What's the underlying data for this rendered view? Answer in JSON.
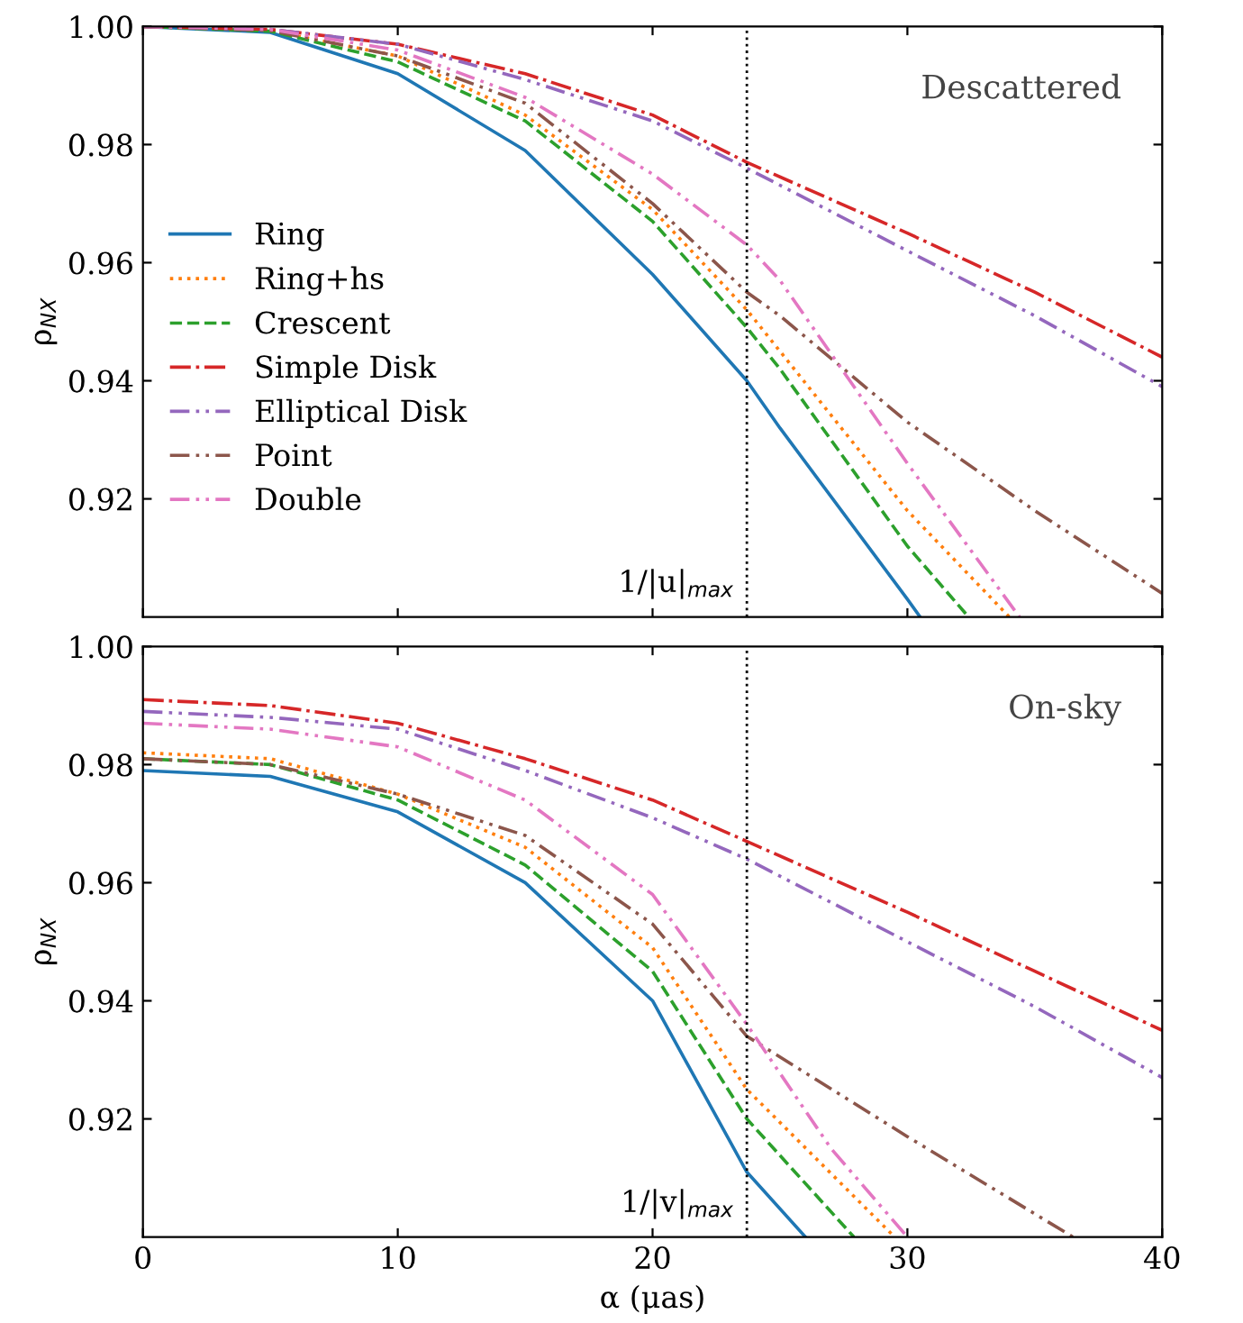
{
  "chart_data": [
    {
      "type": "line",
      "ylabel": "ρ$_{NX}$",
      "xlim": [
        0,
        40
      ],
      "ylim": [
        0.9,
        1.0
      ],
      "xticks": [
        0,
        10,
        20,
        30,
        40
      ],
      "yticks": [
        {
          "value": 0.92,
          "label": "0.92"
        },
        {
          "value": 0.94,
          "label": "0.94"
        },
        {
          "value": 0.96,
          "label": "0.96"
        },
        {
          "value": 0.98,
          "label": "0.98"
        },
        {
          "value": 1.0,
          "label": "1.00"
        }
      ],
      "tick_labels": "y",
      "grid": false,
      "legend": "left",
      "annotations": [
        "Descattered"
      ],
      "ref_lines": [
        {
          "axis": "x",
          "value": 23.7,
          "label": "1/|u|$_{max}$",
          "line_style": "dotted",
          "color": "#000000"
        }
      ],
      "series": [
        {
          "name": "Ring",
          "color": "#1f77b4",
          "line_style": "solid",
          "x": [
            0,
            5,
            10,
            15,
            20,
            23.7,
            25,
            30,
            30.5
          ],
          "values": [
            1.0,
            0.999,
            0.992,
            0.979,
            0.958,
            0.94,
            0.932,
            0.903,
            0.9
          ]
        },
        {
          "name": "Ring+hs",
          "color": "#ff7f0e",
          "line_style": "dotted",
          "x": [
            0,
            5,
            10,
            15,
            20,
            23.7,
            25,
            30,
            34
          ],
          "values": [
            1.0,
            0.9993,
            0.995,
            0.985,
            0.969,
            0.952,
            0.945,
            0.918,
            0.9
          ]
        },
        {
          "name": "Crescent",
          "color": "#2ca02c",
          "line_style": "dashed",
          "x": [
            0,
            5,
            10,
            15,
            20,
            23.7,
            25,
            30,
            32.4
          ],
          "values": [
            1.0,
            0.9992,
            0.994,
            0.984,
            0.967,
            0.949,
            0.942,
            0.912,
            0.9
          ]
        },
        {
          "name": "Simple Disk",
          "color": "#d62728",
          "line_style": "dashdot",
          "x": [
            0,
            5,
            10,
            15,
            20,
            23.7,
            30,
            35,
            40
          ],
          "values": [
            1.0,
            0.9995,
            0.997,
            0.992,
            0.985,
            0.977,
            0.965,
            0.955,
            0.944
          ]
        },
        {
          "name": "Elliptical Disk",
          "color": "#9467bd",
          "line_style": "dashdotdot",
          "x": [
            0,
            5,
            10,
            15,
            20,
            23.7,
            30,
            35,
            40
          ],
          "values": [
            1.0,
            0.9995,
            0.997,
            0.991,
            0.984,
            0.976,
            0.962,
            0.951,
            0.939
          ]
        },
        {
          "name": "Point",
          "color": "#8c564b",
          "line_style": "dashdotdot",
          "x": [
            0,
            5,
            10,
            15,
            20,
            23.7,
            25,
            30,
            35,
            40
          ],
          "values": [
            1.0,
            0.9993,
            0.995,
            0.987,
            0.97,
            0.955,
            0.951,
            0.933,
            0.918,
            0.904
          ]
        },
        {
          "name": "Double",
          "color": "#e377c2",
          "line_style": "dashdotdot",
          "x": [
            0,
            5,
            10,
            15,
            20,
            23.7,
            25,
            30,
            34.4
          ],
          "values": [
            1.0,
            0.9995,
            0.996,
            0.988,
            0.975,
            0.963,
            0.957,
            0.926,
            0.9
          ]
        }
      ]
    },
    {
      "type": "line",
      "xlabel": "α (μas)",
      "ylabel": "ρ$_{NX}$",
      "xlim": [
        0,
        40
      ],
      "ylim": [
        0.9,
        1.0
      ],
      "xticks": [
        0,
        10,
        20,
        30,
        40
      ],
      "yticks": [
        {
          "value": 0.92,
          "label": "0.92"
        },
        {
          "value": 0.94,
          "label": "0.94"
        },
        {
          "value": 0.96,
          "label": "0.96"
        },
        {
          "value": 0.98,
          "label": "0.98"
        },
        {
          "value": 1.0,
          "label": "1.00"
        }
      ],
      "grid": false,
      "annotations": [
        "On-sky"
      ],
      "ref_lines": [
        {
          "axis": "x",
          "value": 23.7,
          "label": "1/|v|$_{max}$",
          "line_style": "dotted",
          "color": "#000000"
        }
      ],
      "series": [
        {
          "color": "#1f77b4",
          "line_style": "solid",
          "x": [
            0,
            5,
            10,
            15,
            20,
            23.7,
            26
          ],
          "values": [
            0.979,
            0.978,
            0.972,
            0.96,
            0.94,
            0.911,
            0.9
          ]
        },
        {
          "color": "#ff7f0e",
          "line_style": "dotted",
          "x": [
            0,
            5,
            10,
            15,
            20,
            23.7,
            29.5
          ],
          "values": [
            0.982,
            0.981,
            0.975,
            0.966,
            0.949,
            0.925,
            0.9
          ]
        },
        {
          "color": "#2ca02c",
          "line_style": "dashed",
          "x": [
            0,
            5,
            10,
            15,
            20,
            23.7,
            27.9
          ],
          "values": [
            0.981,
            0.98,
            0.974,
            0.963,
            0.945,
            0.92,
            0.9
          ]
        },
        {
          "color": "#d62728",
          "line_style": "dashdot",
          "x": [
            0,
            5,
            10,
            15,
            20,
            23.7,
            30,
            35,
            40
          ],
          "values": [
            0.991,
            0.99,
            0.987,
            0.981,
            0.974,
            0.967,
            0.955,
            0.945,
            0.935
          ]
        },
        {
          "color": "#9467bd",
          "line_style": "dashdotdot",
          "x": [
            0,
            5,
            10,
            15,
            20,
            23.7,
            30,
            35,
            40
          ],
          "values": [
            0.989,
            0.988,
            0.986,
            0.979,
            0.971,
            0.964,
            0.95,
            0.939,
            0.927
          ]
        },
        {
          "color": "#8c564b",
          "line_style": "dashdotdot",
          "x": [
            0,
            5,
            10,
            15,
            20,
            23.7,
            30,
            36.5
          ],
          "values": [
            0.981,
            0.98,
            0.975,
            0.968,
            0.953,
            0.934,
            0.917,
            0.9
          ]
        },
        {
          "color": "#e377c2",
          "line_style": "dashdotdot",
          "x": [
            0,
            5,
            10,
            15,
            20,
            23.7,
            27,
            30
          ],
          "values": [
            0.987,
            0.986,
            0.983,
            0.974,
            0.958,
            0.936,
            0.915,
            0.9
          ]
        }
      ]
    }
  ]
}
